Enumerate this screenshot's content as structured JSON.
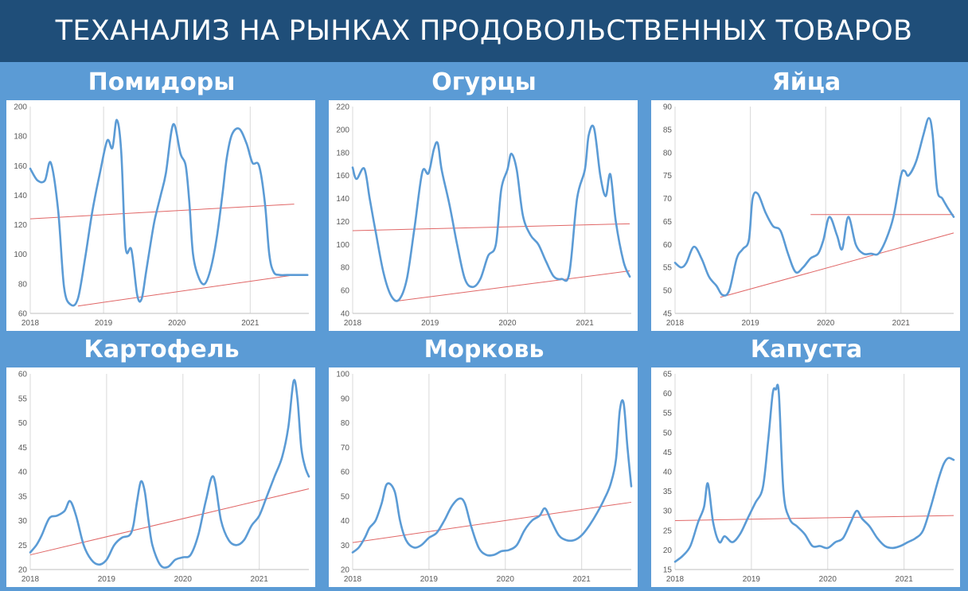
{
  "header": {
    "title": "ТЕХАНАЛИЗ НА РЫНКАХ ПРОДОВОЛЬСТВЕННЫХ ТОВАРОВ"
  },
  "colors": {
    "banner": "#1f4e79",
    "background": "#5b9bd5",
    "series": "#5b9bd5",
    "trend": "#e06666",
    "grid": "#d9d9d9"
  },
  "chart_data": [
    {
      "type": "line",
      "title": "Помидоры",
      "x_ticks": [
        2018,
        2019,
        2020,
        2021
      ],
      "xlim": [
        2018,
        2021.8
      ],
      "ylim": [
        60,
        200
      ],
      "y_ticks": [
        60,
        80,
        100,
        120,
        140,
        160,
        180,
        200
      ],
      "series": [
        {
          "x": [
            2018.0,
            2018.1,
            2018.2,
            2018.28,
            2018.38,
            2018.46,
            2018.55,
            2018.65,
            2018.75,
            2018.85,
            2018.95,
            2019.05,
            2019.12,
            2019.18,
            2019.24,
            2019.3,
            2019.38,
            2019.46,
            2019.52,
            2019.58,
            2019.65,
            2019.7,
            2019.78,
            2019.85,
            2019.95,
            2020.05,
            2020.12,
            2020.17,
            2020.22,
            2020.3,
            2020.38,
            2020.46,
            2020.54,
            2020.62,
            2020.68,
            2020.75,
            2020.85,
            2020.95,
            2021.03,
            2021.12,
            2021.2,
            2021.26,
            2021.32,
            2021.4,
            2021.5,
            2021.6,
            2021.7,
            2021.78
          ],
          "y": [
            158,
            150,
            150,
            162,
            130,
            78,
            66,
            70,
            98,
            130,
            155,
            177,
            172,
            191,
            170,
            105,
            103,
            72,
            70,
            88,
            110,
            124,
            140,
            155,
            188,
            168,
            160,
            135,
            100,
            84,
            80,
            90,
            110,
            140,
            165,
            181,
            185,
            175,
            162,
            160,
            135,
            100,
            88,
            86,
            86,
            86,
            86,
            86
          ]
        }
      ],
      "trend_lines": [
        {
          "x": [
            2018.0,
            2021.6
          ],
          "y": [
            124,
            134
          ]
        },
        {
          "x": [
            2018.65,
            2021.6
          ],
          "y": [
            65,
            86
          ]
        }
      ]
    },
    {
      "type": "line",
      "title": "Огурцы",
      "x_ticks": [
        2018,
        2019,
        2020,
        2021
      ],
      "xlim": [
        2018,
        2021.6
      ],
      "ylim": [
        40,
        220
      ],
      "y_ticks": [
        40,
        60,
        80,
        100,
        120,
        140,
        160,
        180,
        200,
        220
      ],
      "series": [
        {
          "x": [
            2018.0,
            2018.05,
            2018.15,
            2018.22,
            2018.3,
            2018.4,
            2018.5,
            2018.6,
            2018.7,
            2018.8,
            2018.9,
            2018.98,
            2019.05,
            2019.1,
            2019.15,
            2019.25,
            2019.35,
            2019.45,
            2019.55,
            2019.65,
            2019.75,
            2019.85,
            2019.92,
            2020.0,
            2020.05,
            2020.12,
            2020.2,
            2020.3,
            2020.4,
            2020.5,
            2020.6,
            2020.7,
            2020.8,
            2020.9,
            2021.0,
            2021.05,
            2021.12,
            2021.2,
            2021.27,
            2021.33,
            2021.4,
            2021.5,
            2021.58
          ],
          "y": [
            167,
            157,
            166,
            140,
            110,
            75,
            55,
            52,
            70,
            115,
            163,
            162,
            183,
            188,
            165,
            135,
            100,
            70,
            63,
            70,
            90,
            100,
            148,
            165,
            179,
            165,
            125,
            108,
            100,
            85,
            72,
            70,
            75,
            140,
            165,
            195,
            201,
            160,
            142,
            161,
            120,
            85,
            72
          ]
        }
      ],
      "trend_lines": [
        {
          "x": [
            2018.0,
            2021.58
          ],
          "y": [
            112,
            118
          ]
        },
        {
          "x": [
            2018.6,
            2021.58
          ],
          "y": [
            51,
            77
          ]
        }
      ]
    },
    {
      "type": "line",
      "title": "Яйца",
      "x_ticks": [
        2018,
        2019,
        2020,
        2021
      ],
      "xlim": [
        2018,
        2021.7
      ],
      "ylim": [
        45,
        90
      ],
      "y_ticks": [
        45,
        50,
        55,
        60,
        65,
        70,
        75,
        80,
        85,
        90
      ],
      "series": [
        {
          "x": [
            2018.0,
            2018.08,
            2018.15,
            2018.25,
            2018.35,
            2018.45,
            2018.55,
            2018.63,
            2018.72,
            2018.82,
            2018.9,
            2018.98,
            2019.03,
            2019.1,
            2019.2,
            2019.3,
            2019.4,
            2019.5,
            2019.6,
            2019.7,
            2019.8,
            2019.9,
            2019.97,
            2020.05,
            2020.15,
            2020.22,
            2020.3,
            2020.4,
            2020.5,
            2020.6,
            2020.7,
            2020.8,
            2020.9,
            2021.0,
            2021.05,
            2021.1,
            2021.2,
            2021.3,
            2021.37,
            2021.42,
            2021.48,
            2021.55,
            2021.62,
            2021.7
          ],
          "y": [
            56,
            55,
            56,
            59.5,
            57,
            53,
            51,
            49,
            50,
            57,
            59,
            61,
            70,
            71,
            67,
            64,
            63,
            58,
            54,
            55,
            57,
            58,
            61,
            66,
            62,
            59,
            66,
            60,
            58,
            58,
            58,
            61,
            66,
            75,
            76,
            75,
            78,
            84,
            87.5,
            84,
            72,
            70,
            68,
            66
          ]
        }
      ],
      "trend_lines": [
        {
          "x": [
            2019.8,
            2021.7
          ],
          "y": [
            66.5,
            66.5
          ]
        },
        {
          "x": [
            2018.6,
            2021.7
          ],
          "y": [
            48.5,
            62.5
          ]
        }
      ]
    },
    {
      "type": "line",
      "title": "Картофель",
      "x_ticks": [
        2018,
        2019,
        2020,
        2021
      ],
      "xlim": [
        2018,
        2021.65
      ],
      "ylim": [
        20,
        60
      ],
      "y_ticks": [
        20,
        25,
        30,
        35,
        40,
        45,
        50,
        55,
        60
      ],
      "series": [
        {
          "x": [
            2018.0,
            2018.08,
            2018.15,
            2018.25,
            2018.35,
            2018.45,
            2018.52,
            2018.6,
            2018.7,
            2018.8,
            2018.9,
            2019.0,
            2019.1,
            2019.2,
            2019.3,
            2019.35,
            2019.4,
            2019.45,
            2019.5,
            2019.55,
            2019.6,
            2019.7,
            2019.8,
            2019.9,
            2020.0,
            2020.1,
            2020.2,
            2020.3,
            2020.4,
            2020.5,
            2020.6,
            2020.7,
            2020.8,
            2020.9,
            2021.0,
            2021.1,
            2021.2,
            2021.3,
            2021.38,
            2021.45,
            2021.5,
            2021.55,
            2021.6,
            2021.65
          ],
          "y": [
            23.5,
            25,
            27,
            30.5,
            31,
            32,
            34,
            31,
            25,
            22,
            21,
            22,
            25,
            26.5,
            27,
            29,
            34,
            38,
            36,
            30,
            25,
            21,
            20.5,
            22,
            22.5,
            23,
            27,
            34,
            39,
            30,
            26,
            25,
            26,
            29,
            31,
            35,
            39,
            43,
            49,
            58.5,
            55,
            45,
            41,
            39
          ]
        }
      ],
      "trend_lines": [
        {
          "x": [
            2018.0,
            2021.65
          ],
          "y": [
            23,
            36.5
          ]
        }
      ]
    },
    {
      "type": "line",
      "title": "Морковь",
      "x_ticks": [
        2018,
        2019,
        2020,
        2021
      ],
      "xlim": [
        2018,
        2021.65
      ],
      "ylim": [
        20,
        100
      ],
      "y_ticks": [
        20,
        30,
        40,
        50,
        60,
        70,
        80,
        90,
        100
      ],
      "series": [
        {
          "x": [
            2018.0,
            2018.08,
            2018.16,
            2018.22,
            2018.3,
            2018.38,
            2018.45,
            2018.55,
            2018.62,
            2018.7,
            2018.8,
            2018.9,
            2019.0,
            2019.1,
            2019.2,
            2019.3,
            2019.4,
            2019.47,
            2019.55,
            2019.65,
            2019.75,
            2019.85,
            2019.95,
            2020.05,
            2020.15,
            2020.25,
            2020.35,
            2020.45,
            2020.52,
            2020.6,
            2020.7,
            2020.8,
            2020.9,
            2021.0,
            2021.1,
            2021.2,
            2021.3,
            2021.38,
            2021.45,
            2021.5,
            2021.55,
            2021.6,
            2021.65
          ],
          "y": [
            27,
            29,
            33,
            37,
            40,
            47,
            55,
            52,
            40,
            32,
            29,
            30,
            33,
            35,
            40,
            46,
            49,
            47,
            38,
            29,
            26,
            26,
            27.5,
            28,
            30,
            36,
            40,
            42,
            45,
            40,
            34,
            32,
            32,
            34,
            38,
            43,
            49,
            55,
            65,
            85,
            88,
            70,
            54
          ]
        }
      ],
      "trend_lines": [
        {
          "x": [
            2018.0,
            2021.65
          ],
          "y": [
            31,
            47.5
          ]
        }
      ]
    },
    {
      "type": "line",
      "title": "Капуста",
      "x_ticks": [
        2018,
        2019,
        2020,
        2021
      ],
      "xlim": [
        2018,
        2021.65
      ],
      "ylim": [
        15,
        65
      ],
      "y_ticks": [
        15,
        20,
        25,
        30,
        35,
        40,
        45,
        50,
        55,
        60,
        65
      ],
      "series": [
        {
          "x": [
            2018.0,
            2018.1,
            2018.2,
            2018.3,
            2018.38,
            2018.43,
            2018.5,
            2018.58,
            2018.65,
            2018.75,
            2018.85,
            2018.95,
            2019.05,
            2019.15,
            2019.22,
            2019.28,
            2019.32,
            2019.36,
            2019.42,
            2019.5,
            2019.6,
            2019.7,
            2019.8,
            2019.9,
            2020.0,
            2020.1,
            2020.2,
            2020.3,
            2020.38,
            2020.45,
            2020.55,
            2020.65,
            2020.75,
            2020.85,
            2020.95,
            2021.05,
            2021.15,
            2021.25,
            2021.35,
            2021.45,
            2021.52,
            2021.58,
            2021.65
          ],
          "y": [
            17,
            18.5,
            21,
            27,
            31,
            37,
            27,
            22,
            23.5,
            22,
            24,
            28,
            32,
            36,
            48,
            60,
            61,
            60,
            35,
            28,
            26,
            24,
            21,
            21,
            20.5,
            22,
            23,
            27,
            30,
            28,
            26,
            23,
            21,
            20.5,
            21,
            22,
            23,
            25,
            31,
            38,
            42,
            43.5,
            43
          ]
        }
      ],
      "trend_lines": [
        {
          "x": [
            2018.0,
            2021.65
          ],
          "y": [
            27.5,
            28.8
          ]
        }
      ]
    }
  ]
}
